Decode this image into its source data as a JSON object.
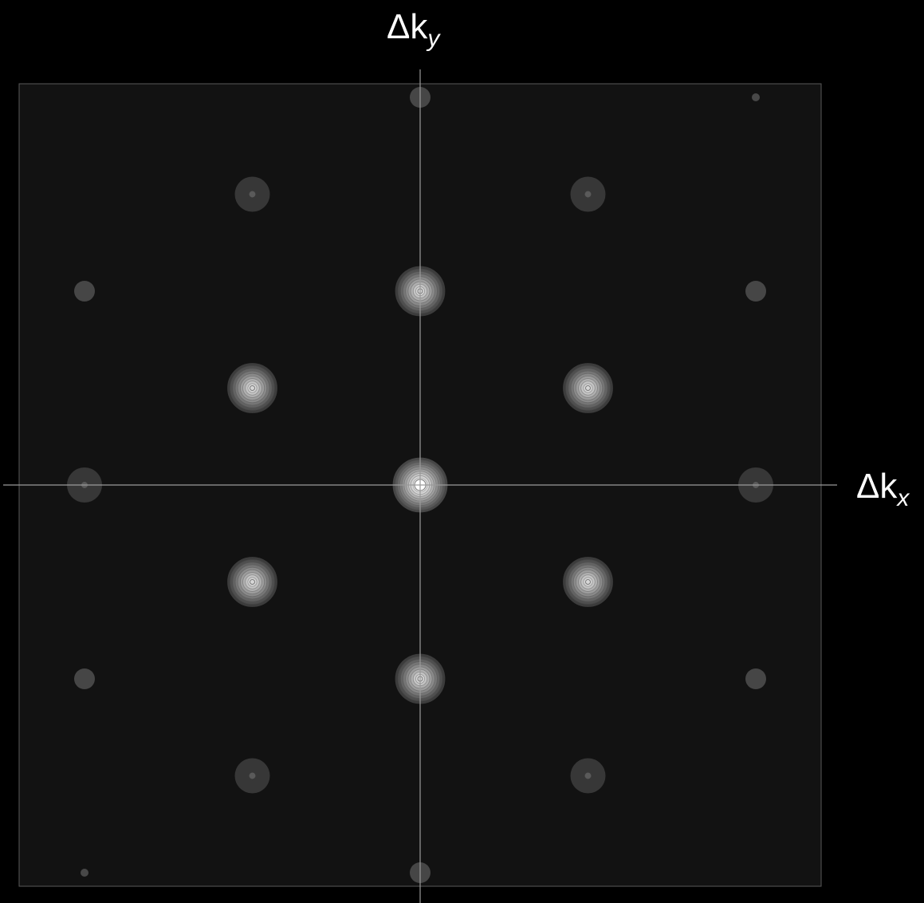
{
  "axes": {
    "x_label_main": "Δk",
    "x_label_sub": "x",
    "y_label_main": "Δk",
    "y_label_sub": "y"
  },
  "colors": {
    "background": "#000000",
    "panel": "#121212",
    "axis_line": "#9a9a9a",
    "peak_core": "#ffffff"
  },
  "lattice": {
    "grid_span": 4,
    "reflections": [
      {
        "h": 0,
        "k": 0,
        "intensity": 1.0
      },
      {
        "h": 0,
        "k": 2,
        "intensity": 0.75
      },
      {
        "h": 0,
        "k": -2,
        "intensity": 0.75
      },
      {
        "h": -1,
        "k": 1,
        "intensity": 0.75
      },
      {
        "h": 1,
        "k": 1,
        "intensity": 0.75
      },
      {
        "h": -1,
        "k": -1,
        "intensity": 0.75
      },
      {
        "h": 1,
        "k": -1,
        "intensity": 0.75
      },
      {
        "h": -2,
        "k": 0,
        "intensity": 0.35
      },
      {
        "h": 2,
        "k": 0,
        "intensity": 0.35
      },
      {
        "h": -1,
        "k": 3,
        "intensity": 0.3
      },
      {
        "h": 1,
        "k": 3,
        "intensity": 0.3
      },
      {
        "h": -1,
        "k": -3,
        "intensity": 0.3
      },
      {
        "h": 1,
        "k": -3,
        "intensity": 0.3
      },
      {
        "h": -2,
        "k": 2,
        "intensity": 0.15
      },
      {
        "h": 2,
        "k": 2,
        "intensity": 0.15
      },
      {
        "h": -2,
        "k": -2,
        "intensity": 0.15
      },
      {
        "h": 2,
        "k": -2,
        "intensity": 0.15
      },
      {
        "h": 0,
        "k": 4,
        "intensity": 0.15
      },
      {
        "h": 0,
        "k": -4,
        "intensity": 0.15
      },
      {
        "h": 2,
        "k": 4,
        "intensity": 0.05
      },
      {
        "h": -2,
        "k": -4,
        "intensity": 0.05
      }
    ]
  }
}
